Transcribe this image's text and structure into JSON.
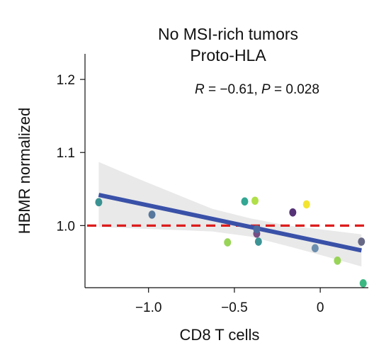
{
  "chart_data": {
    "type": "scatter",
    "title": [
      "No MSI-rich tumors",
      "Proto-HLA"
    ],
    "annotation": {
      "r_symbol": "R",
      "r_text": " = −0.61, ",
      "p_symbol": "P",
      "p_text": " = 0.028"
    },
    "xlabel": "CD8 T cells",
    "ylabel": "HBMR normalized",
    "xlim": [
      -1.37,
      0.28
    ],
    "ylim": [
      0.915,
      1.235
    ],
    "xticks": [
      -1.0,
      -0.5,
      0
    ],
    "xtick_labels": [
      "−1.0",
      "−0.5",
      "0"
    ],
    "yticks": [
      1.0,
      1.1,
      1.2
    ],
    "ytick_labels": [
      "1.0",
      "1.1",
      "1.2"
    ],
    "reference_line": {
      "y": 1.0,
      "style": "dashed",
      "color": "#dd1c1c"
    },
    "regression": {
      "x": [
        -1.29,
        0.24
      ],
      "y": [
        1.042,
        0.966
      ],
      "color": "#3a51a8",
      "band_upper": [
        1.087,
        1.065,
        1.044,
        1.023,
        1.01,
        1.0,
        0.994,
        0.988
      ],
      "band_lower": [
        0.998,
        0.996,
        0.994,
        0.992,
        0.985,
        0.972,
        0.958,
        0.944
      ],
      "band_x": [
        -1.29,
        -1.07,
        -0.85,
        -0.63,
        -0.41,
        -0.19,
        0.03,
        0.24
      ],
      "band_color": "#e9e9e9"
    },
    "points": [
      {
        "x": -1.29,
        "y": 1.032,
        "color": "#2a8a8a"
      },
      {
        "x": -0.98,
        "y": 1.015,
        "color": "#4a6e95"
      },
      {
        "x": -0.54,
        "y": 0.977,
        "color": "#8fd04a"
      },
      {
        "x": -0.44,
        "y": 1.033,
        "color": "#21a08a"
      },
      {
        "x": -0.38,
        "y": 1.034,
        "color": "#a9dc3a"
      },
      {
        "x": -0.37,
        "y": 0.989,
        "color": "#6e3f7a"
      },
      {
        "x": -0.37,
        "y": 0.995,
        "color": "#4a6ea0"
      },
      {
        "x": -0.36,
        "y": 0.978,
        "color": "#2b8b8c"
      },
      {
        "x": -0.16,
        "y": 1.018,
        "color": "#48216a"
      },
      {
        "x": -0.08,
        "y": 1.029,
        "color": "#f2e21f"
      },
      {
        "x": -0.03,
        "y": 0.969,
        "color": "#5f85a8"
      },
      {
        "x": 0.1,
        "y": 0.952,
        "color": "#8fd04a"
      },
      {
        "x": 0.24,
        "y": 0.978,
        "color": "#5a5c7c"
      },
      {
        "x": 0.25,
        "y": 0.921,
        "color": "#2ab277"
      }
    ]
  }
}
